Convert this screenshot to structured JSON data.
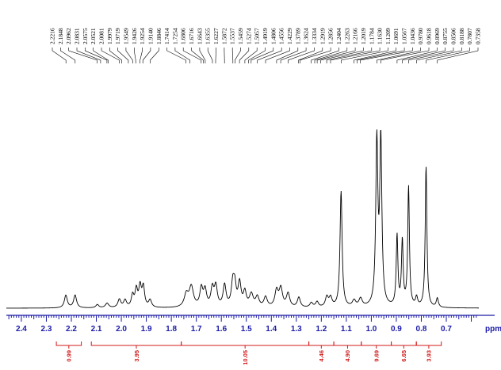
{
  "chart_data": {
    "type": "line",
    "title": "",
    "xlabel": "ppm",
    "ylabel": "",
    "xlim": [
      2.46,
      0.57
    ],
    "x_reversed": true,
    "axis_color": "#1a1aa8",
    "integral_color": "#d01818",
    "x_ticks": [
      "2.4",
      "2.3",
      "2.2",
      "2.1",
      "2.0",
      "1.9",
      "1.8",
      "1.7",
      "1.6",
      "1.5",
      "1.4",
      "1.3",
      "1.2",
      "1.1",
      "1.0",
      "0.9",
      "0.8",
      "0.7"
    ],
    "x_tick_values": [
      2.4,
      2.3,
      2.2,
      2.1,
      2.0,
      1.9,
      1.8,
      1.7,
      1.6,
      1.5,
      1.4,
      1.3,
      1.2,
      1.1,
      1.0,
      0.9,
      0.8,
      0.7
    ],
    "peak_labels": [
      "2.2216",
      "2.1848",
      "2.0962",
      "2.0831",
      "2.0575",
      "2.0521",
      "2.0081",
      "1.9979",
      "1.9719",
      "1.9549",
      "1.9426",
      "1.9254",
      "1.9140",
      "1.8846",
      "1.7414",
      "1.7254",
      "1.6806",
      "1.6716",
      "1.6643",
      "1.6355",
      "1.6227",
      "1.5872",
      "1.5537",
      "1.5459",
      "1.5274",
      "1.5057",
      "1.4919",
      "1.4806",
      "1.4556",
      "1.4229",
      "1.3789",
      "1.3624",
      "1.3334",
      "1.2919",
      "1.2856",
      "1.2404",
      "1.2263",
      "1.2166",
      "1.2019",
      "1.1784",
      "1.1630",
      "1.1209",
      "1.0691",
      "1.0567",
      "1.0436",
      "0.9780",
      "0.9618",
      "0.8969",
      "0.8755",
      "0.8506",
      "0.8188",
      "0.7807",
      "0.7358"
    ],
    "integrals": [
      {
        "label": "0.99",
        "from": 2.26,
        "to": 2.16
      },
      {
        "label": "3.95",
        "from": 2.12,
        "to": 1.76
      },
      {
        "label": "10.05",
        "from": 1.76,
        "to": 1.25
      },
      {
        "label": "4.46",
        "from": 1.25,
        "to": 1.15
      },
      {
        "label": "4.90",
        "from": 1.15,
        "to": 1.04
      },
      {
        "label": "9.69",
        "from": 1.04,
        "to": 0.92
      },
      {
        "label": "6.65",
        "from": 0.92,
        "to": 0.82
      },
      {
        "label": "3.93",
        "from": 0.82,
        "to": 0.72
      }
    ],
    "peaks": [
      {
        "x": 2.222,
        "y": 0.07,
        "w": 0.007
      },
      {
        "x": 2.185,
        "y": 0.07,
        "w": 0.007
      },
      {
        "x": 2.096,
        "y": 0.018,
        "w": 0.007
      },
      {
        "x": 2.057,
        "y": 0.025,
        "w": 0.008
      },
      {
        "x": 2.008,
        "y": 0.045,
        "w": 0.007
      },
      {
        "x": 1.985,
        "y": 0.04,
        "w": 0.007
      },
      {
        "x": 1.955,
        "y": 0.065,
        "w": 0.006
      },
      {
        "x": 1.94,
        "y": 0.095,
        "w": 0.006
      },
      {
        "x": 1.925,
        "y": 0.11,
        "w": 0.006
      },
      {
        "x": 1.912,
        "y": 0.11,
        "w": 0.006
      },
      {
        "x": 1.885,
        "y": 0.04,
        "w": 0.007
      },
      {
        "x": 1.74,
        "y": 0.07,
        "w": 0.01
      },
      {
        "x": 1.72,
        "y": 0.11,
        "w": 0.01
      },
      {
        "x": 1.68,
        "y": 0.1,
        "w": 0.007
      },
      {
        "x": 1.665,
        "y": 0.09,
        "w": 0.007
      },
      {
        "x": 1.636,
        "y": 0.1,
        "w": 0.007
      },
      {
        "x": 1.622,
        "y": 0.11,
        "w": 0.007
      },
      {
        "x": 1.587,
        "y": 0.12,
        "w": 0.007
      },
      {
        "x": 1.554,
        "y": 0.13,
        "w": 0.007
      },
      {
        "x": 1.546,
        "y": 0.1,
        "w": 0.006
      },
      {
        "x": 1.527,
        "y": 0.13,
        "w": 0.007
      },
      {
        "x": 1.506,
        "y": 0.08,
        "w": 0.007
      },
      {
        "x": 1.48,
        "y": 0.07,
        "w": 0.009
      },
      {
        "x": 1.456,
        "y": 0.055,
        "w": 0.008
      },
      {
        "x": 1.423,
        "y": 0.055,
        "w": 0.008
      },
      {
        "x": 1.379,
        "y": 0.09,
        "w": 0.008
      },
      {
        "x": 1.362,
        "y": 0.1,
        "w": 0.008
      },
      {
        "x": 1.333,
        "y": 0.075,
        "w": 0.008
      },
      {
        "x": 1.29,
        "y": 0.055,
        "w": 0.007
      },
      {
        "x": 1.24,
        "y": 0.025,
        "w": 0.007
      },
      {
        "x": 1.217,
        "y": 0.03,
        "w": 0.007
      },
      {
        "x": 1.178,
        "y": 0.055,
        "w": 0.007
      },
      {
        "x": 1.163,
        "y": 0.05,
        "w": 0.007
      },
      {
        "x": 1.121,
        "y": 0.64,
        "w": 0.005
      },
      {
        "x": 1.069,
        "y": 0.035,
        "w": 0.008
      },
      {
        "x": 1.043,
        "y": 0.045,
        "w": 0.008
      },
      {
        "x": 0.978,
        "y": 0.9,
        "w": 0.005
      },
      {
        "x": 0.962,
        "y": 0.91,
        "w": 0.005
      },
      {
        "x": 0.897,
        "y": 0.39,
        "w": 0.004
      },
      {
        "x": 0.876,
        "y": 0.36,
        "w": 0.004
      },
      {
        "x": 0.851,
        "y": 0.66,
        "w": 0.004
      },
      {
        "x": 0.819,
        "y": 0.05,
        "w": 0.005
      },
      {
        "x": 0.781,
        "y": 0.78,
        "w": 0.004
      },
      {
        "x": 0.736,
        "y": 0.05,
        "w": 0.005
      }
    ]
  }
}
